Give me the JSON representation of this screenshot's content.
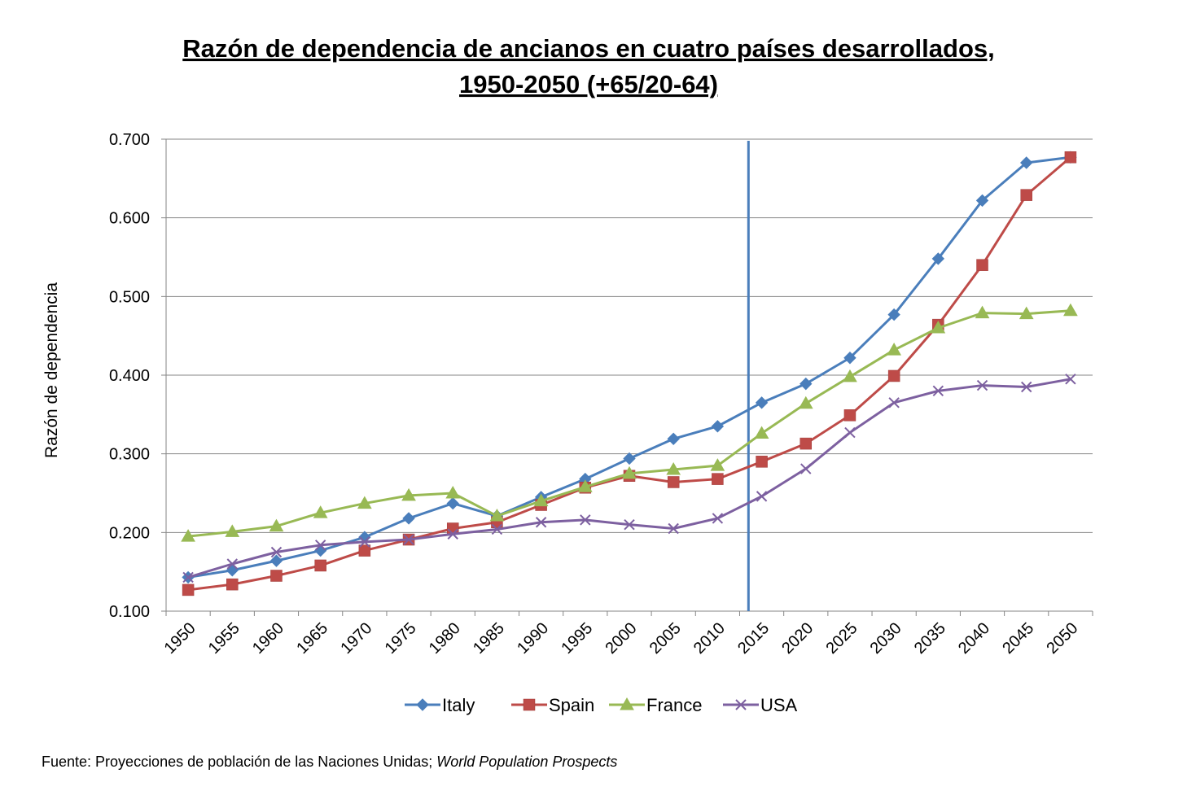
{
  "chart_data": {
    "type": "line",
    "title_line1": "Razón de dependencia de ancianos en cuatro países desarrollados,",
    "title_line2": "1950-2050 (+65/20-64)",
    "ylabel": "Razón de dependencia",
    "xlabel": "",
    "ylim": [
      0.1,
      0.7
    ],
    "yticks": [
      "0.100",
      "0.200",
      "0.300",
      "0.400",
      "0.500",
      "0.600",
      "0.700"
    ],
    "grid": true,
    "legend_position": "bottom",
    "categories": [
      "1950",
      "1955",
      "1960",
      "1965",
      "1970",
      "1975",
      "1980",
      "1985",
      "1990",
      "1995",
      "2000",
      "2005",
      "2010",
      "2015",
      "2020",
      "2025",
      "2030",
      "2035",
      "2040",
      "2045",
      "2050"
    ],
    "reference_line_x": 2013.5,
    "series": [
      {
        "name": "Italy",
        "color": "#4a7ebb",
        "marker": "diamond",
        "values": [
          0.143,
          0.152,
          0.164,
          0.177,
          0.194,
          0.218,
          0.237,
          0.221,
          0.245,
          0.268,
          0.294,
          0.319,
          0.335,
          0.365,
          0.389,
          0.422,
          0.477,
          0.548,
          0.622,
          0.67,
          0.677
        ]
      },
      {
        "name": "Spain",
        "color": "#be4b48",
        "marker": "square",
        "values": [
          0.127,
          0.134,
          0.145,
          0.158,
          0.177,
          0.191,
          0.205,
          0.213,
          0.235,
          0.257,
          0.272,
          0.264,
          0.268,
          0.29,
          0.313,
          0.349,
          0.399,
          0.464,
          0.54,
          0.629,
          0.677
        ]
      },
      {
        "name": "France",
        "color": "#98b954",
        "marker": "triangle",
        "values": [
          0.195,
          0.201,
          0.208,
          0.225,
          0.237,
          0.247,
          0.25,
          0.221,
          0.24,
          0.258,
          0.275,
          0.28,
          0.285,
          0.326,
          0.364,
          0.398,
          0.432,
          0.46,
          0.479,
          0.478,
          0.482
        ]
      },
      {
        "name": "USA",
        "color": "#7d60a0",
        "marker": "x",
        "values": [
          0.143,
          0.16,
          0.175,
          0.184,
          0.188,
          0.191,
          0.198,
          0.204,
          0.213,
          0.216,
          0.21,
          0.205,
          0.218,
          0.246,
          0.281,
          0.327,
          0.365,
          0.38,
          0.387,
          0.385,
          0.395
        ]
      }
    ]
  },
  "source": {
    "prefix": "Fuente: Proyecciones de población de las Naciones Unidas; ",
    "italic": "World Population Prospects"
  }
}
